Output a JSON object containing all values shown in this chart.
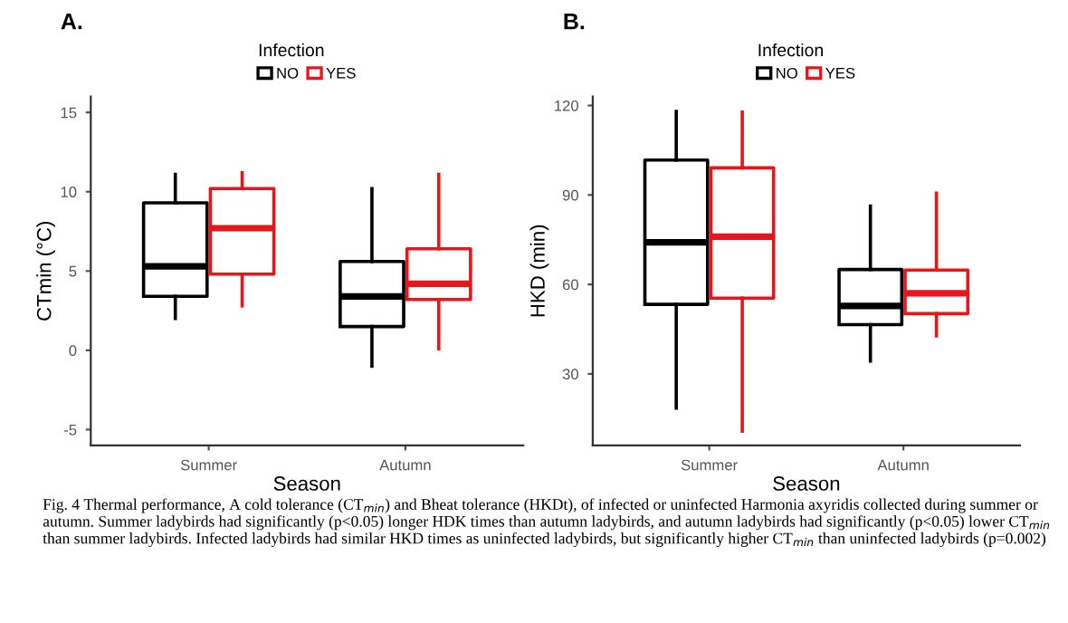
{
  "chart_data": [
    {
      "type": "box",
      "title": "A.",
      "xlabel": "Season",
      "ylabel": "CTmin (°C)",
      "legend_title": "Infection",
      "legend": "top",
      "grid": false,
      "categories": [
        "Summer",
        "Autumn"
      ],
      "ylim": [
        -6,
        16
      ],
      "yticks": [
        -5,
        0,
        5,
        10,
        15
      ],
      "series": [
        {
          "name": "NO",
          "color": "#000000",
          "boxes": [
            {
              "low": 2.0,
              "q1": 3.4,
              "median": 5.3,
              "q3": 9.3,
              "high": 11.1
            },
            {
              "low": -1.0,
              "q1": 1.5,
              "median": 3.4,
              "q3": 5.6,
              "high": 10.2
            }
          ]
        },
        {
          "name": "YES",
          "color": "#e8161b",
          "boxes": [
            {
              "low": 2.8,
              "q1": 4.8,
              "median": 7.7,
              "q3": 10.2,
              "high": 11.2
            },
            {
              "low": 0.1,
              "q1": 3.2,
              "median": 4.2,
              "q3": 6.4,
              "high": 11.1
            }
          ]
        }
      ],
      "annotations": [
        "Fig. 4 Thermal performance, A cold tolerance (CT$_{min}$) and Bheat tolerance (HKDt), of infected or uninfected Harmonia axyridis collected during summer or autumn. Summer ladybirds had significantly (p<0.05) longer HDK times than autumn ladybirds, and autumn ladybirds had significantly (p<0.05) lower CT$_{min}$ than summer ladybirds. Infected ladybirds had similar HKD times as uninfected ladybirds, but significantly higher CT$_{min}$ than uninfected ladybirds (p=0.002)"
      ]
    },
    {
      "type": "box",
      "title": "B.",
      "xlabel": "Season",
      "ylabel": "HKD (min)",
      "legend_title": "Infection",
      "legend": "top",
      "grid": false,
      "categories": [
        "Summer",
        "Autumn"
      ],
      "ylim": [
        6,
        123
      ],
      "yticks": [
        30,
        60,
        90,
        120
      ],
      "series": [
        {
          "name": "NO",
          "color": "#000000",
          "boxes": [
            {
              "low": 18.5,
              "q1": 53.3,
              "median": 74.1,
              "q3": 101.7,
              "high": 118
            },
            {
              "low": 34.3,
              "q1": 46.5,
              "median": 52.8,
              "q3": 65,
              "high": 86.3
            }
          ]
        },
        {
          "name": "YES",
          "color": "#e8161b",
          "boxes": [
            {
              "low": 10.8,
              "q1": 55.4,
              "median": 76,
              "q3": 99.1,
              "high": 117.8
            },
            {
              "low": 42.7,
              "q1": 50.2,
              "median": 57,
              "q3": 64.8,
              "high": 90.6
            }
          ]
        }
      ]
    }
  ]
}
